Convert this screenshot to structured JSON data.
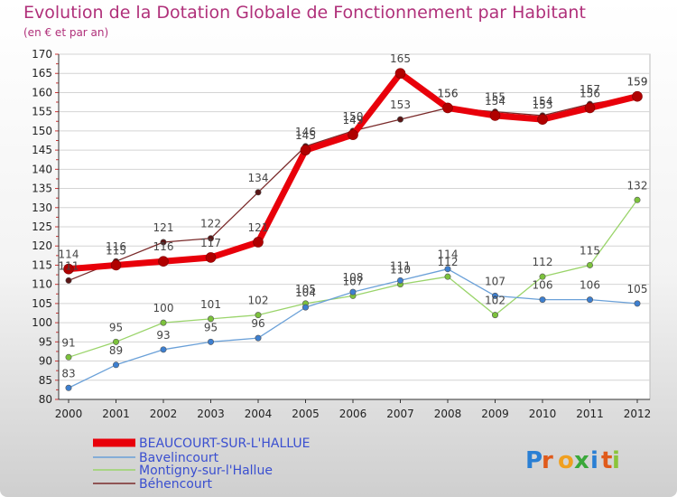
{
  "chart_data": {
    "type": "line",
    "title": "Evolution de la Dotation Globale de Fonctionnement par Habitant",
    "subtitle": "(en € et par an)",
    "categories": [
      "2000",
      "2001",
      "2002",
      "2003",
      "2004",
      "2005",
      "2006",
      "2007",
      "2008",
      "2009",
      "2010",
      "2011",
      "2012"
    ],
    "yticks": [
      80,
      85,
      90,
      95,
      100,
      105,
      110,
      115,
      120,
      125,
      130,
      135,
      140,
      145,
      150,
      155,
      160,
      165,
      170
    ],
    "ylim": [
      80,
      170
    ],
    "grid": "horizontal",
    "legend_position": "bottom-left",
    "series": [
      {
        "name": "BEAUCOURT-SUR-L'HALLUE",
        "color": "#e8000a",
        "point_color": "#b00000",
        "values": [
          114,
          115,
          116,
          117,
          121,
          145,
          149,
          165,
          156,
          154,
          153,
          156,
          159
        ],
        "labels": [
          "114",
          "115",
          "116",
          "117",
          "121",
          "145",
          "149",
          "165",
          "156",
          "154",
          "153",
          "156",
          "159"
        ]
      },
      {
        "name": "Bavelincourt",
        "color": "#6aa0d8",
        "point_color": "#3d7fd0",
        "values": [
          83,
          89,
          93,
          95,
          96,
          104,
          108,
          111,
          114,
          107,
          106,
          106,
          105
        ],
        "labels": [
          "83",
          "89",
          "93",
          "95",
          "96",
          "104",
          "108",
          "111",
          "114",
          "107",
          "106",
          "106",
          "105"
        ]
      },
      {
        "name": "Montigny-sur-l'Hallue",
        "color": "#9ad46a",
        "point_color": "#7cc23c",
        "values": [
          91,
          95,
          100,
          101,
          102,
          105,
          107,
          110,
          112,
          102,
          112,
          115,
          132
        ],
        "labels": [
          "91",
          "95",
          "100",
          "101",
          "102",
          "105",
          "107",
          "110",
          "112",
          "102",
          "112",
          "115",
          "132"
        ]
      },
      {
        "name": "Béhencourt",
        "color": "#7a2a2a",
        "point_color": "#5a1515",
        "values": [
          111,
          116,
          121,
          122,
          134,
          146,
          150,
          153,
          156,
          155,
          154,
          157,
          159
        ],
        "labels": [
          "111",
          "116",
          "121",
          "122",
          "134",
          "146",
          "150",
          "153",
          "156",
          "155",
          "154",
          "157",
          "159"
        ]
      }
    ]
  },
  "colors": {
    "background_top": "#ffffff",
    "background_bottom": "#cfcfcf",
    "plot_background": "#ffffff",
    "grid": "#d4d4d4",
    "title": "#b0307a",
    "legend_text": "#3a4fd0"
  },
  "logo": {
    "text": "Proxiti"
  }
}
